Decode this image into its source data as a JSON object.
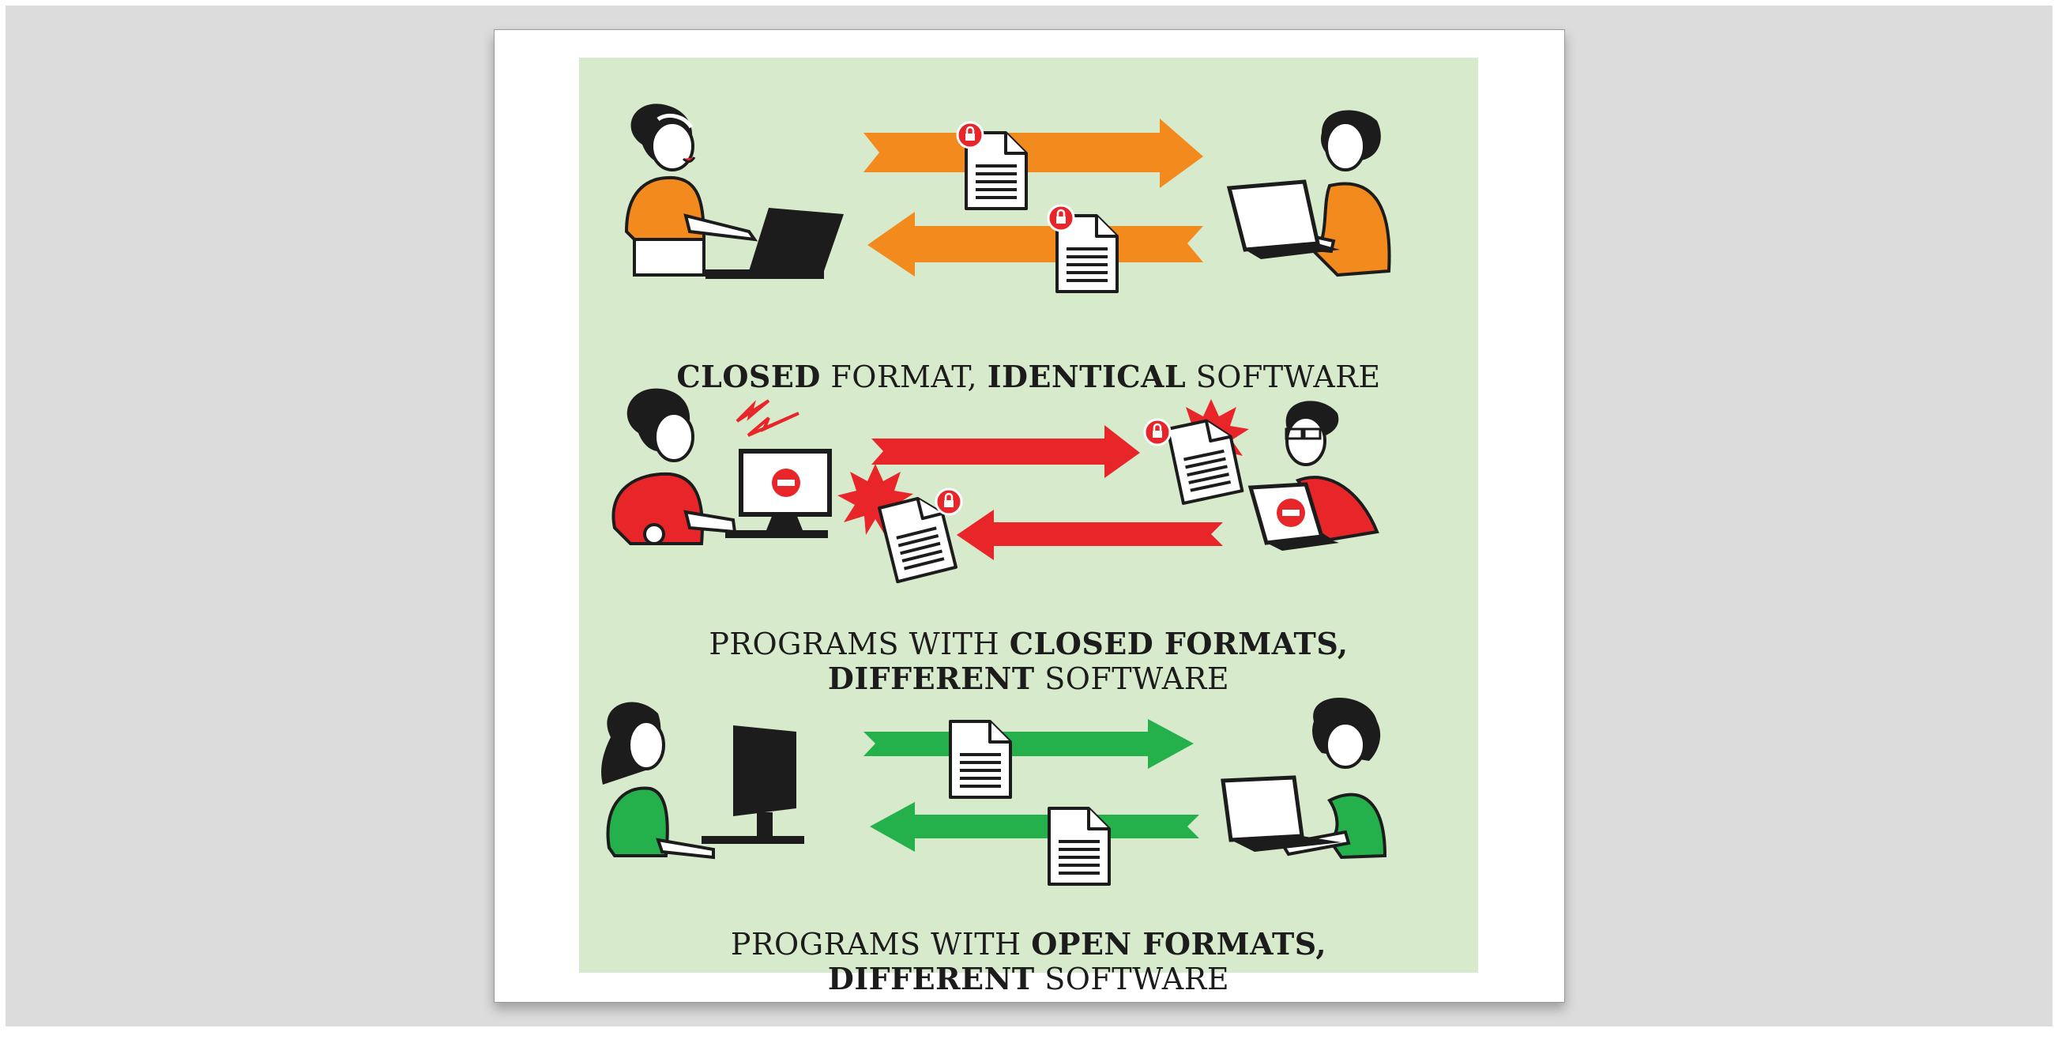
{
  "captions": {
    "row1": {
      "w1": "CLOSED",
      "w2": "FORMAT,",
      "w3": "IDENTICAL",
      "w4": "SOFTWARE"
    },
    "row2": {
      "line1_a": "PROGRAMS WITH",
      "line1_b": "CLOSED FORMATS,",
      "line2_a": "DIFFERENT",
      "line2_b": "SOFTWARE"
    },
    "row3": {
      "line1_a": "PROGRAMS WITH",
      "line1_b": "OPEN FORMATS,",
      "line2_a": "DIFFERENT",
      "line2_b": "SOFTWARE"
    }
  },
  "colors": {
    "panel": "#d8eacc",
    "orange": "#f28a1e",
    "red": "#e8262a",
    "green": "#24b04b",
    "ink": "#1c1c1c"
  },
  "icons": {
    "lock": "padlock-badge-icon",
    "error": "no-entry-icon",
    "document": "document-icon",
    "lightning": "lightning-bolt-icon",
    "burst": "explosion-burst-icon"
  }
}
